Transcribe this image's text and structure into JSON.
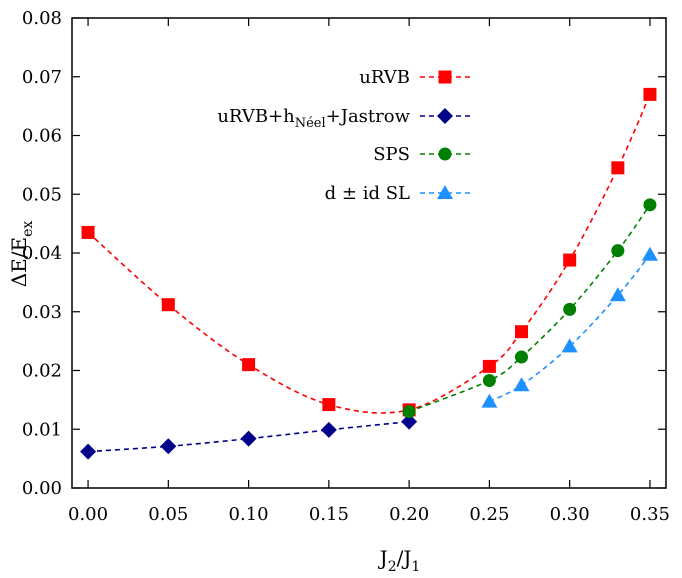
{
  "chart_data": {
    "type": "line",
    "title": "",
    "xlabel": {
      "base": "J",
      "sub1": "2",
      "sep": "/J",
      "sub2": "1"
    },
    "ylabel": {
      "base": "ΔE/E",
      "sub": "ex"
    },
    "xlim": [
      -0.01,
      0.36
    ],
    "ylim": [
      0,
      0.08
    ],
    "xticks": [
      "0.00",
      "0.05",
      "0.10",
      "0.15",
      "0.20",
      "0.25",
      "0.30",
      "0.35"
    ],
    "yticks": [
      "0.00",
      "0.01",
      "0.02",
      "0.03",
      "0.04",
      "0.05",
      "0.06",
      "0.07",
      "0.08"
    ],
    "grid": false,
    "legend_position": "top-right",
    "series": [
      {
        "name": "uRVB",
        "color": "#ff0000",
        "marker": "square",
        "x": [
          0.0,
          0.05,
          0.1,
          0.15,
          0.2,
          0.25,
          0.27,
          0.3,
          0.33,
          0.35
        ],
        "y": [
          0.0435,
          0.0312,
          0.021,
          0.0142,
          0.0133,
          0.0207,
          0.0266,
          0.0388,
          0.0545,
          0.067
        ]
      },
      {
        "name": "uRVB+hNéel+Jastrow",
        "name_parts": {
          "pre": "uRVB+h",
          "sub": "Néel",
          "post": "+Jastrow"
        },
        "color": "#00008b",
        "marker": "diamond",
        "x": [
          0.0,
          0.05,
          0.1,
          0.15,
          0.2
        ],
        "y": [
          0.0062,
          0.0071,
          0.0084,
          0.0099,
          0.0113
        ]
      },
      {
        "name": "SPS",
        "color": "#008000",
        "marker": "circle",
        "x": [
          0.2,
          0.25,
          0.27,
          0.3,
          0.33,
          0.35
        ],
        "y": [
          0.013,
          0.0183,
          0.0223,
          0.0304,
          0.0404,
          0.0482
        ]
      },
      {
        "name": "d ± id SL",
        "color": "#1e90ff",
        "marker": "triangle",
        "x": [
          0.25,
          0.27,
          0.3,
          0.33,
          0.35
        ],
        "y": [
          0.0147,
          0.0175,
          0.0241,
          0.0328,
          0.0397
        ]
      }
    ]
  }
}
